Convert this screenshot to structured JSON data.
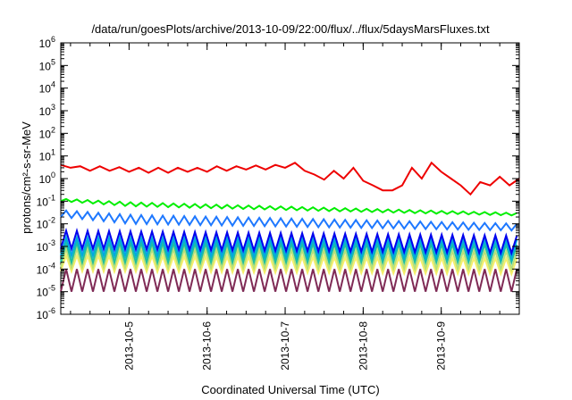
{
  "chart_data": {
    "type": "line",
    "title": "/data/run/goesPlots/archive/2013-10-09/22:00/flux/../flux/5daysMarsFluxes.txt",
    "xlabel": "Coordinated Universal Time (UTC)",
    "ylabel": "protons/cm²-s-sr-MeV",
    "y_scale": "log",
    "ylim": [
      "1e-6",
      "1e6"
    ],
    "xlim": [
      "2013-10-04 03:00",
      "2013-10-10 00:00"
    ],
    "grid": false,
    "legend": "none",
    "x_ticks": [
      "2013-10-5",
      "2013-10-6",
      "2013-10-7",
      "2013-10-8",
      "2013-10-9"
    ],
    "y_ticks": [
      {
        "base": "10",
        "exp": "-6"
      },
      {
        "base": "10",
        "exp": "-5"
      },
      {
        "base": "10",
        "exp": "-4"
      },
      {
        "base": "10",
        "exp": "-3"
      },
      {
        "base": "10",
        "exp": "-2"
      },
      {
        "base": "10",
        "exp": "-1"
      },
      {
        "base": "10",
        "exp": "0"
      },
      {
        "base": "10",
        "exp": "1"
      },
      {
        "base": "10",
        "exp": "2"
      },
      {
        "base": "10",
        "exp": "3"
      },
      {
        "base": "10",
        "exp": "4"
      },
      {
        "base": "10",
        "exp": "5"
      },
      {
        "base": "10",
        "exp": "6"
      }
    ],
    "series": [
      {
        "color": "#7f2a55",
        "sawtooth_period_hours": 3.3,
        "peak": [
          [
            "2013-10-04 03:00",
            "1e-4"
          ],
          [
            "2013-10-10 00:00",
            "1e-4"
          ]
        ],
        "trough": [
          [
            "2013-10-04 03:00",
            "1e-5"
          ],
          [
            "2013-10-10 00:00",
            "1e-5"
          ]
        ]
      },
      {
        "color": "#f5ef6a",
        "sawtooth_period_hours": 3.3,
        "peak": [
          [
            "2013-10-04 03:00",
            "4e-4"
          ],
          [
            "2013-10-10 00:00",
            "3e-4"
          ]
        ],
        "trough": [
          [
            "2013-10-04 03:00",
            "8e-5"
          ],
          [
            "2013-10-10 00:00",
            "6e-5"
          ]
        ]
      },
      {
        "color": "#b7e07a",
        "sawtooth_period_hours": 3.3,
        "peak": [
          [
            "2013-10-04 03:00",
            "8e-4"
          ],
          [
            "2013-10-10 00:00",
            "6e-4"
          ]
        ],
        "trough": [
          [
            "2013-10-04 03:00",
            "1.2e-4"
          ],
          [
            "2013-10-10 00:00",
            "1e-4"
          ]
        ]
      },
      {
        "color": "#1fbf9f",
        "sawtooth_period_hours": 3.3,
        "peak": [
          [
            "2013-10-04 03:00",
            "1.5e-3"
          ],
          [
            "2013-10-10 00:00",
            "1.2e-3"
          ]
        ],
        "trough": [
          [
            "2013-10-04 03:00",
            "2e-4"
          ],
          [
            "2013-10-10 00:00",
            "2e-4"
          ]
        ]
      },
      {
        "color": "#00a9e0",
        "sawtooth_period_hours": 3.3,
        "peak": [
          [
            "2013-10-04 03:00",
            "2.5e-3"
          ],
          [
            "2013-10-10 00:00",
            "2e-3"
          ]
        ],
        "trough": [
          [
            "2013-10-04 03:00",
            "4e-4"
          ],
          [
            "2013-10-10 00:00",
            "3e-4"
          ]
        ]
      },
      {
        "color": "#0000ee",
        "sawtooth_period_hours": 3.3,
        "peak": [
          [
            "2013-10-04 03:00",
            "5e-3"
          ],
          [
            "2013-10-10 00:00",
            "3e-3"
          ]
        ],
        "trough": [
          [
            "2013-10-04 03:00",
            "8e-4"
          ],
          [
            "2013-10-10 00:00",
            "5e-4"
          ]
        ]
      },
      {
        "color": "#1e78ff",
        "sawtooth_period_hours": 3.3,
        "peak": [
          [
            "2013-10-04 03:00",
            "4e-2"
          ],
          [
            "2013-10-05 00:00",
            "2.5e-2"
          ],
          [
            "2013-10-10 00:00",
            "1e-2"
          ]
        ],
        "trough": [
          [
            "2013-10-04 03:00",
            "2e-2"
          ],
          [
            "2013-10-05 00:00",
            "1e-2"
          ],
          [
            "2013-10-10 00:00",
            "5e-3"
          ]
        ]
      },
      {
        "color": "#00ee00",
        "sawtooth_period_hours": 3.3,
        "peak": [
          [
            "2013-10-04 03:00",
            "1.3e-1"
          ],
          [
            "2013-10-05 00:00",
            "9e-2"
          ],
          [
            "2013-10-10 00:00",
            "3e-2"
          ]
        ],
        "trough": [
          [
            "2013-10-04 03:00",
            "1e-1"
          ],
          [
            "2013-10-05 00:00",
            "6e-2"
          ],
          [
            "2013-10-10 00:00",
            "2.3e-2"
          ]
        ]
      },
      {
        "color": "#ee0000",
        "points": [
          [
            "2013-10-04 03:00",
            "4"
          ],
          [
            "2013-10-04 06:00",
            "3"
          ],
          [
            "2013-10-04 09:00",
            "3.5"
          ],
          [
            "2013-10-04 12:00",
            "2.2"
          ],
          [
            "2013-10-04 15:00",
            "3.5"
          ],
          [
            "2013-10-04 18:00",
            "2.2"
          ],
          [
            "2013-10-04 21:00",
            "3.2"
          ],
          [
            "2013-10-05 00:00",
            "2"
          ],
          [
            "2013-10-05 03:00",
            "3"
          ],
          [
            "2013-10-05 06:00",
            "1.8"
          ],
          [
            "2013-10-05 09:00",
            "3"
          ],
          [
            "2013-10-05 12:00",
            "1.8"
          ],
          [
            "2013-10-05 15:00",
            "3"
          ],
          [
            "2013-10-05 18:00",
            "2"
          ],
          [
            "2013-10-05 21:00",
            "3"
          ],
          [
            "2013-10-06 00:00",
            "2"
          ],
          [
            "2013-10-06 03:00",
            "3.5"
          ],
          [
            "2013-10-06 06:00",
            "2.2"
          ],
          [
            "2013-10-06 09:00",
            "3.5"
          ],
          [
            "2013-10-06 12:00",
            "2.5"
          ],
          [
            "2013-10-06 15:00",
            "3.8"
          ],
          [
            "2013-10-06 18:00",
            "2.5"
          ],
          [
            "2013-10-06 21:00",
            "4"
          ],
          [
            "2013-10-07 00:00",
            "3"
          ],
          [
            "2013-10-07 03:00",
            "5"
          ],
          [
            "2013-10-07 06:00",
            "2.2"
          ],
          [
            "2013-10-07 09:00",
            "1.5"
          ],
          [
            "2013-10-07 12:00",
            "0.9"
          ],
          [
            "2013-10-07 15:00",
            "2.2"
          ],
          [
            "2013-10-07 18:00",
            "1"
          ],
          [
            "2013-10-07 21:00",
            "3"
          ],
          [
            "2013-10-08 00:00",
            "0.8"
          ],
          [
            "2013-10-08 03:00",
            "0.5"
          ],
          [
            "2013-10-08 06:00",
            "0.3"
          ],
          [
            "2013-10-08 09:00",
            "0.3"
          ],
          [
            "2013-10-08 12:00",
            "0.5"
          ],
          [
            "2013-10-08 15:00",
            "3"
          ],
          [
            "2013-10-08 18:00",
            "1"
          ],
          [
            "2013-10-08 21:00",
            "5"
          ],
          [
            "2013-10-09 00:00",
            "2"
          ],
          [
            "2013-10-09 03:00",
            "1"
          ],
          [
            "2013-10-09 06:00",
            "0.5"
          ],
          [
            "2013-10-09 09:00",
            "0.2"
          ],
          [
            "2013-10-09 12:00",
            "0.7"
          ],
          [
            "2013-10-09 15:00",
            "0.5"
          ],
          [
            "2013-10-09 18:00",
            "1.2"
          ],
          [
            "2013-10-09 21:00",
            "0.5"
          ],
          [
            "2013-10-10 00:00",
            "1"
          ]
        ]
      }
    ]
  }
}
